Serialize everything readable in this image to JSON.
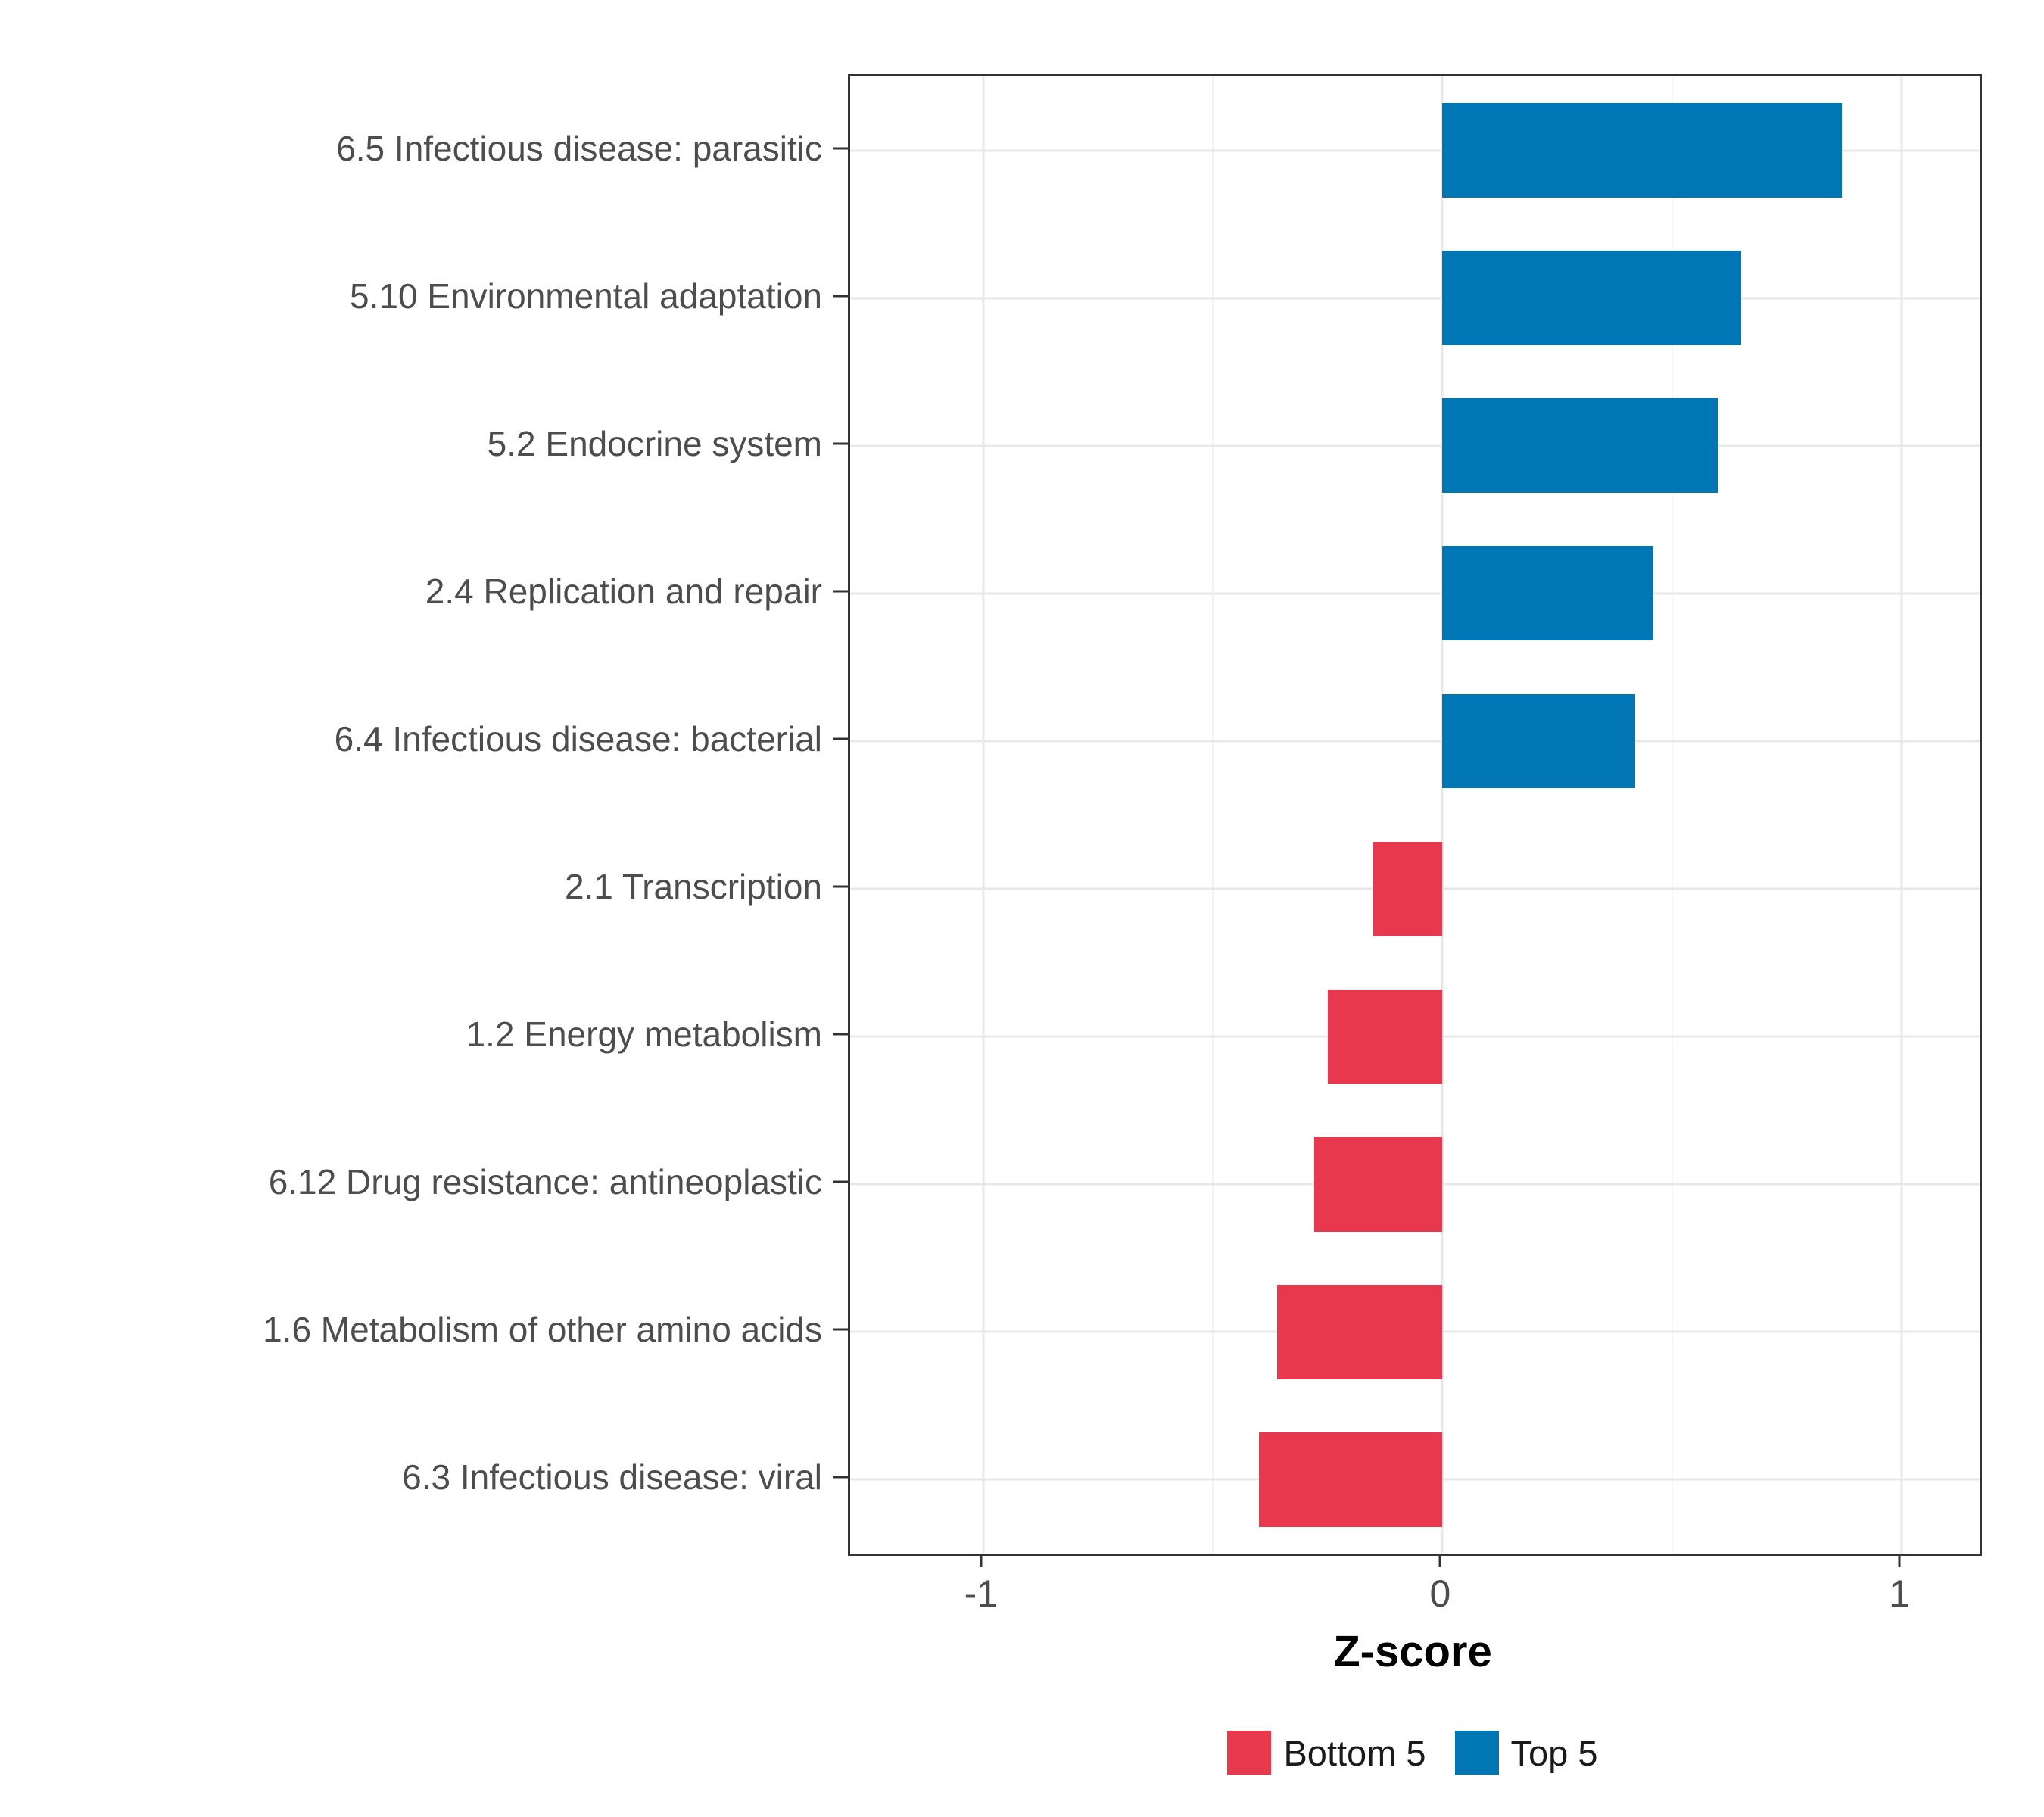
{
  "chart_data": {
    "type": "bar",
    "orientation": "horizontal",
    "title": "",
    "xlabel": "Z-score",
    "ylabel": "",
    "categories": [
      "6.5 Infectious disease: parasitic",
      "5.10 Environmental adaptation",
      "5.2 Endocrine system",
      "2.4 Replication and repair",
      "6.4 Infectious disease: bacterial",
      "2.1 Transcription",
      "1.2 Energy metabolism",
      "6.12 Drug resistance: antineoplastic",
      "1.6 Metabolism of other amino acids",
      "6.3 Infectious disease: viral"
    ],
    "values": [
      0.87,
      0.65,
      0.6,
      0.46,
      0.42,
      -0.15,
      -0.25,
      -0.28,
      -0.36,
      -0.4
    ],
    "groups": [
      "Top 5",
      "Top 5",
      "Top 5",
      "Top 5",
      "Top 5",
      "Bottom 5",
      "Bottom 5",
      "Bottom 5",
      "Bottom 5",
      "Bottom 5"
    ],
    "group_colors": {
      "Top 5": "#0077B4",
      "Bottom 5": "#E8384D"
    },
    "xlim": [
      -1.29,
      1.17
    ],
    "x_ticks": [
      -1,
      0,
      1
    ],
    "x_tick_labels": [
      "-1",
      "0",
      "1"
    ],
    "x_minor_ticks": [
      -0.5,
      0.5
    ],
    "grid": true,
    "legend": {
      "position": "bottom",
      "entries": [
        {
          "label": "Bottom 5",
          "color": "#E8384D"
        },
        {
          "label": "Top 5",
          "color": "#0077B4"
        }
      ]
    }
  }
}
